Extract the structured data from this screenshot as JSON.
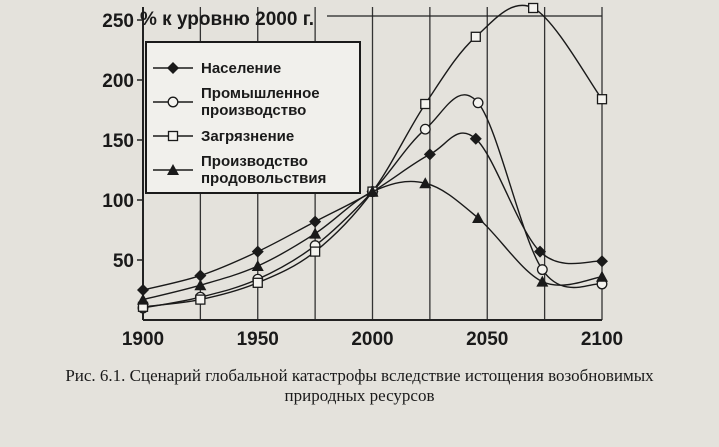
{
  "caption": {
    "line1": "Рис. 6.1. Сценарий глобальной катастрофы вследствие истощения возобновимых",
    "line2": "природных ресурсов"
  },
  "chart_data": {
    "type": "line",
    "ylabel": "% к уровню 2000 г.",
    "xlim": [
      1900,
      2100
    ],
    "ylim": [
      0,
      250
    ],
    "x_ticks": [
      1900,
      1950,
      2000,
      2050,
      2100
    ],
    "y_ticks": [
      50,
      100,
      150,
      200,
      250
    ],
    "grid_x": [
      1900,
      1925,
      1950,
      1975,
      2000,
      2025,
      2050,
      2075,
      2100
    ],
    "legend_position": "top-left",
    "series": [
      {
        "name": "Население",
        "marker": "diamond",
        "x": [
          1900,
          1925,
          1950,
          1975,
          2000,
          2025,
          2045,
          2073,
          2100
        ],
        "y": [
          25,
          37,
          57,
          82,
          107,
          138,
          151,
          57,
          49
        ]
      },
      {
        "name": "Промышленное производство",
        "marker": "circle",
        "x": [
          1900,
          1925,
          1950,
          1975,
          2000,
          2023,
          2046,
          2074,
          2100
        ],
        "y": [
          10,
          19,
          34,
          62,
          107,
          159,
          181,
          42,
          30
        ]
      },
      {
        "name": "Загрязнение",
        "marker": "square",
        "x": [
          1900,
          1925,
          1950,
          1975,
          2000,
          2023,
          2045,
          2070,
          2100
        ],
        "y": [
          11,
          17,
          31,
          57,
          107,
          180,
          236,
          260,
          184
        ]
      },
      {
        "name": "Производство продовольствия",
        "marker": "triangle",
        "x": [
          1900,
          1925,
          1950,
          1975,
          2000,
          2023,
          2046,
          2074,
          2100
        ],
        "y": [
          17,
          29,
          45,
          72,
          107,
          114,
          85,
          32,
          36
        ]
      }
    ]
  }
}
